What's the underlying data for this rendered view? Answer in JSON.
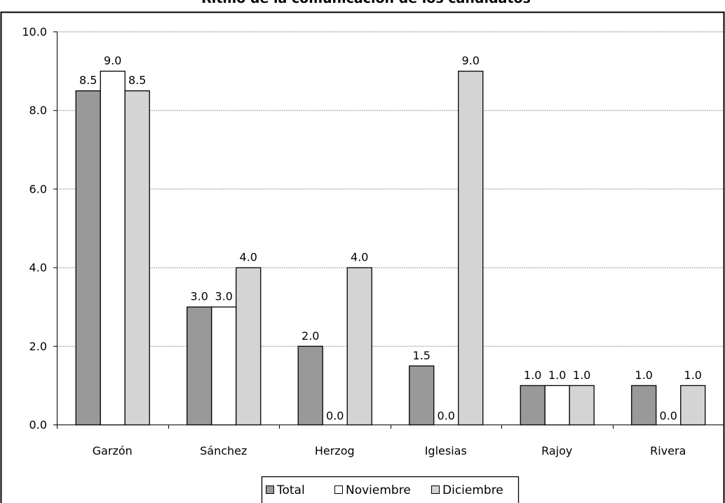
{
  "chart_data": {
    "type": "bar",
    "title": "Ritmo de la comunicación de los candidatos",
    "xlabel": "",
    "ylabel": "",
    "categories": [
      "Garzón",
      "Sánchez",
      "Herzog",
      "Iglesias",
      "Rajoy",
      "Rivera"
    ],
    "series": [
      {
        "name": "Total",
        "values": [
          8.5,
          3.0,
          2.0,
          1.5,
          1.0,
          1.0
        ],
        "color": "#999999"
      },
      {
        "name": "Noviembre",
        "values": [
          9.0,
          3.0,
          0.0,
          0.0,
          1.0,
          0.0
        ],
        "color": "#ffffff"
      },
      {
        "name": "Diciembre",
        "values": [
          8.5,
          4.0,
          4.0,
          9.0,
          1.0,
          1.0
        ],
        "color": "#d4d4d4"
      }
    ],
    "ylim": [
      0,
      10
    ],
    "yticks": [
      "0.0",
      "2.0",
      "4.0",
      "6.0",
      "8.0",
      "10.0"
    ],
    "grid": true,
    "legend_position": "bottom"
  }
}
